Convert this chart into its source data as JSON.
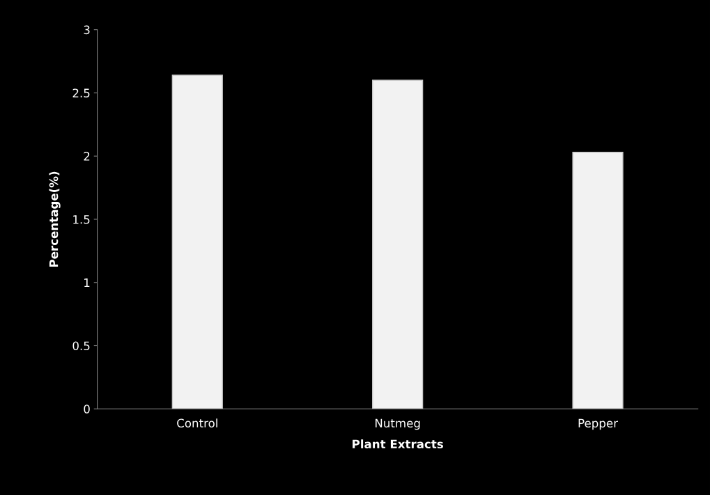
{
  "chart_data": {
    "type": "bar",
    "xlabel": "Plant Extracts",
    "ylabel": "Percentage(%)",
    "categories": [
      "Control",
      "Nutmeg",
      "Pepper"
    ],
    "values": [
      2.64,
      2.6,
      2.03
    ],
    "color": "#f2f2f2",
    "ylim": [
      0,
      3
    ],
    "yticks": [
      0,
      0.5,
      1,
      1.5,
      2,
      2.5,
      3
    ]
  }
}
